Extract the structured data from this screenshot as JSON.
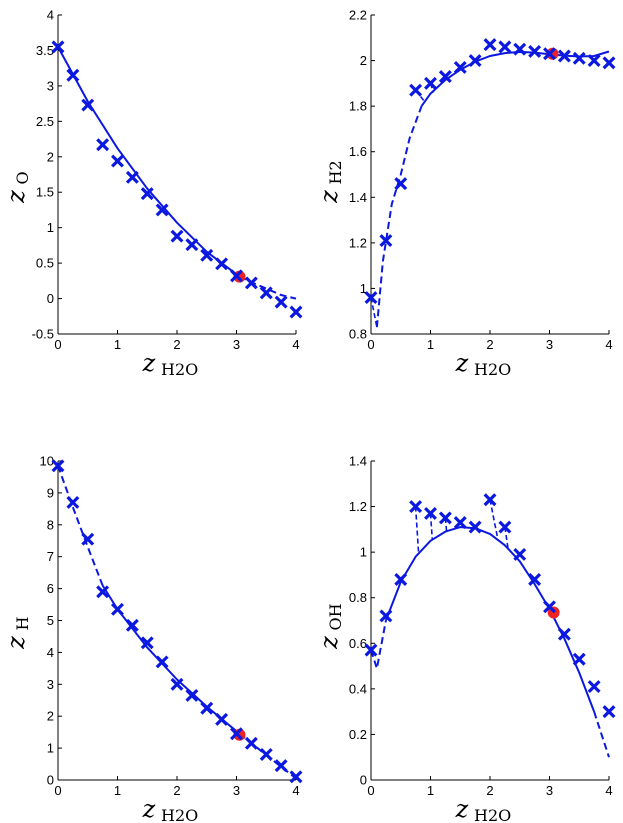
{
  "colors": {
    "series": "#0b18e0",
    "highlight": "#ee2222",
    "axes": "#000000"
  },
  "chart_data": [
    {
      "type": "scatter",
      "xlabel": "z",
      "xlabel_sub": "H2O",
      "ylabel": "z",
      "ylabel_sub": "O",
      "xlim": [
        0,
        4
      ],
      "ylim": [
        -0.5,
        4
      ],
      "xticks": [
        0,
        1,
        2,
        3,
        4
      ],
      "yticks": [
        -0.5,
        0,
        0.5,
        1,
        1.5,
        2,
        2.5,
        3,
        3.5,
        4
      ],
      "ytick_labels": [
        "-0.5",
        "0",
        "0.5",
        "1",
        "1.5",
        "2",
        "2.5",
        "3",
        "3.5",
        "4"
      ],
      "markers": {
        "x": [
          0,
          0.25,
          0.5,
          0.75,
          1,
          1.25,
          1.5,
          1.75,
          2,
          2.25,
          2.5,
          2.75,
          3,
          3.25,
          3.5,
          3.75,
          4
        ],
        "y": [
          3.55,
          3.15,
          2.73,
          2.17,
          1.94,
          1.71,
          1.48,
          1.25,
          0.88,
          0.76,
          0.61,
          0.49,
          0.32,
          0.22,
          0.08,
          -0.05,
          -0.19
        ]
      },
      "fit": {
        "x": [
          0,
          0.5,
          1,
          1.5,
          2,
          2.5,
          3.05
        ],
        "y": [
          3.55,
          2.78,
          2.12,
          1.55,
          1.07,
          0.66,
          0.31
        ]
      },
      "extrapolation": {
        "x": [
          3.05,
          3.25,
          3.5,
          3.75,
          4
        ],
        "y": [
          0.31,
          0.23,
          0.14,
          0.05,
          0
        ]
      },
      "residuals": [],
      "highlight": {
        "x": 3.05,
        "y": 0.31
      }
    },
    {
      "type": "scatter",
      "xlabel": "z",
      "xlabel_sub": "H2O",
      "ylabel": "z",
      "ylabel_sub": "H2",
      "xlim": [
        0,
        4
      ],
      "ylim": [
        0.8,
        2.2
      ],
      "xticks": [
        0,
        1,
        2,
        3,
        4
      ],
      "yticks": [
        0.8,
        1,
        1.2,
        1.4,
        1.6,
        1.8,
        2,
        2.2
      ],
      "ytick_labels": [
        "0.8",
        "1",
        "1.2",
        "1.4",
        "1.6",
        "1.8",
        "2",
        "2.2"
      ],
      "markers": {
        "x": [
          0,
          0.25,
          0.5,
          0.75,
          1,
          1.25,
          1.5,
          1.75,
          2,
          2.25,
          2.5,
          2.75,
          3,
          3.25,
          3.5,
          3.75,
          4
        ],
        "y": [
          0.96,
          1.21,
          1.46,
          1.87,
          1.9,
          1.93,
          1.97,
          2.0,
          2.07,
          2.06,
          2.05,
          2.04,
          2.03,
          2.02,
          2.01,
          2.0,
          1.99
        ]
      },
      "fit": {
        "x": [
          0.85,
          1,
          1.25,
          1.5,
          1.75,
          2,
          2.25,
          2.5,
          2.75,
          3,
          3.25,
          3.5,
          3.75,
          4
        ],
        "y": [
          1.8,
          1.855,
          1.915,
          1.96,
          1.995,
          2.02,
          2.033,
          2.038,
          2.035,
          2.028,
          2.022,
          2.018,
          2.02,
          2.04
        ]
      },
      "extrapolation": {
        "x": [
          0.1,
          0.2,
          0.35,
          0.5,
          0.65,
          0.85
        ],
        "y": [
          0.83,
          1.12,
          1.37,
          1.5,
          1.66,
          1.8
        ]
      },
      "residuals": [
        {
          "x": [
            0,
            0.1
          ],
          "y": [
            0.96,
            0.83
          ]
        },
        {
          "x": [
            0.75,
            0.9
          ],
          "y": [
            1.87,
            1.82
          ]
        },
        {
          "x": [
            1.0,
            1.05
          ],
          "y": [
            1.9,
            1.86
          ]
        }
      ],
      "highlight": {
        "x": 3.05,
        "y": 2.03
      }
    },
    {
      "type": "scatter",
      "xlabel": "z",
      "xlabel_sub": "H2O",
      "ylabel": "z",
      "ylabel_sub": "H",
      "xlim": [
        0,
        4
      ],
      "ylim": [
        0,
        10
      ],
      "xticks": [
        0,
        1,
        2,
        3,
        4
      ],
      "yticks": [
        0,
        1,
        2,
        3,
        4,
        5,
        6,
        7,
        8,
        9,
        10
      ],
      "ytick_labels": [
        "0",
        "1",
        "2",
        "3",
        "4",
        "5",
        "6",
        "7",
        "8",
        "9",
        "10"
      ],
      "markers": {
        "x": [
          0,
          0.25,
          0.5,
          0.75,
          1,
          1.25,
          1.5,
          1.75,
          2,
          2.25,
          2.5,
          2.75,
          3,
          3.25,
          3.5,
          3.75,
          4
        ],
        "y": [
          9.85,
          8.7,
          7.55,
          5.9,
          5.35,
          4.85,
          4.3,
          3.7,
          3.0,
          2.65,
          2.25,
          1.9,
          1.45,
          1.15,
          0.8,
          0.45,
          0.1
        ]
      },
      "fit": {
        "x": [
          0.75,
          1,
          1.5,
          2,
          2.5,
          3.05
        ],
        "y": [
          6.1,
          5.35,
          4.15,
          3.15,
          2.3,
          1.45
        ]
      },
      "extrapolation": {
        "x": [
          0,
          0.25,
          0.5,
          0.75
        ],
        "y": [
          9.85,
          8.55,
          7.3,
          6.1
        ],
        "tail_x": [
          3.05,
          3.5,
          4
        ],
        "tail_y": [
          1.45,
          0.78,
          0.05
        ]
      },
      "residuals": [],
      "highlight": {
        "x": 3.05,
        "y": 1.42
      }
    },
    {
      "type": "scatter",
      "xlabel": "z",
      "xlabel_sub": "H2O",
      "ylabel": "z",
      "ylabel_sub": "OH",
      "xlim": [
        0,
        4
      ],
      "ylim": [
        0,
        1.4
      ],
      "xticks": [
        0,
        1,
        2,
        3,
        4
      ],
      "yticks": [
        0,
        0.2,
        0.4,
        0.6,
        0.8,
        1,
        1.2,
        1.4
      ],
      "ytick_labels": [
        "0",
        "0.2",
        "0.4",
        "0.6",
        "0.8",
        "1",
        "1.2",
        "1.4"
      ],
      "markers": {
        "x": [
          0,
          0.25,
          0.5,
          0.75,
          1,
          1.25,
          1.5,
          1.75,
          2,
          2.25,
          2.5,
          2.75,
          3,
          3.25,
          3.5,
          3.75,
          4
        ],
        "y": [
          0.57,
          0.72,
          0.88,
          1.2,
          1.17,
          1.15,
          1.13,
          1.11,
          1.23,
          1.11,
          0.99,
          0.88,
          0.76,
          0.64,
          0.53,
          0.41,
          0.3
        ]
      },
      "fit": {
        "x": [
          0.25,
          0.5,
          0.75,
          1,
          1.25,
          1.5,
          1.75,
          2,
          2.25,
          2.5,
          2.75,
          3,
          3.25,
          3.5,
          3.75
        ],
        "y": [
          0.7,
          0.87,
          0.98,
          1.05,
          1.09,
          1.11,
          1.105,
          1.08,
          1.03,
          0.96,
          0.86,
          0.75,
          0.62,
          0.47,
          0.3
        ]
      },
      "extrapolation": {
        "x": [
          0,
          0.1,
          0.25
        ],
        "y": [
          0.57,
          0.49,
          0.7
        ],
        "tail_x": [
          3.75,
          4
        ],
        "tail_y": [
          0.3,
          0.1
        ]
      },
      "residuals": [
        {
          "x": [
            0.75,
            0.8
          ],
          "y": [
            1.2,
            0.995
          ]
        },
        {
          "x": [
            1.0,
            1.03
          ],
          "y": [
            1.17,
            1.055
          ]
        },
        {
          "x": [
            1.25,
            1.27
          ],
          "y": [
            1.15,
            1.09
          ]
        },
        {
          "x": [
            2.0,
            2.13
          ],
          "y": [
            1.23,
            1.06
          ]
        },
        {
          "x": [
            2.25,
            2.3
          ],
          "y": [
            1.11,
            1.02
          ]
        }
      ],
      "highlight": {
        "x": 3.07,
        "y": 0.735
      }
    }
  ]
}
